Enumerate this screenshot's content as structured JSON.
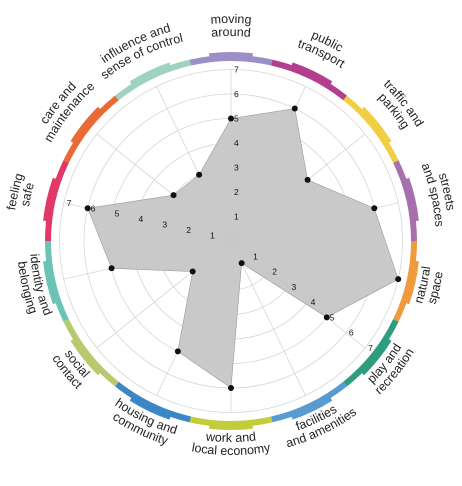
{
  "chart_data": {
    "type": "radar",
    "title": "",
    "scale": {
      "min": 0,
      "max": 7,
      "ticks": [
        1,
        2,
        3,
        4,
        5,
        6,
        7
      ]
    },
    "tick_axes": [
      "moving around",
      "feeling safe",
      "play and recreation"
    ],
    "categories": [
      {
        "name": "moving around",
        "lines": [
          "moving",
          "around"
        ],
        "value": 5,
        "color": "#9c8fc9"
      },
      {
        "name": "public transport",
        "lines": [
          "public",
          "transport"
        ],
        "value": 6,
        "color": "#b23f8e"
      },
      {
        "name": "traffic and parking",
        "lines": [
          "traffic and",
          "parking"
        ],
        "value": 4,
        "color": "#f0cf45"
      },
      {
        "name": "streets and spaces",
        "lines": [
          "streets",
          "and spaces"
        ],
        "value": 6,
        "color": "#a86fae"
      },
      {
        "name": "natural space",
        "lines": [
          "natural",
          "space"
        ],
        "value": 7,
        "color": "#ef9a3c"
      },
      {
        "name": "play and recreation",
        "lines": [
          "play and",
          "recreation"
        ],
        "value": 5,
        "color": "#2f9c7f"
      },
      {
        "name": "facilities and amenities",
        "lines": [
          "facilities",
          "and amenities"
        ],
        "value": 1,
        "color": "#5a9bcf"
      },
      {
        "name": "work and local economy",
        "lines": [
          "work and",
          "local economy"
        ],
        "value": 6,
        "color": "#c3cc3b"
      },
      {
        "name": "housing and community",
        "lines": [
          "housing and",
          "community"
        ],
        "value": 5,
        "color": "#3b86c4"
      },
      {
        "name": "social contact",
        "lines": [
          "social",
          "contact"
        ],
        "value": 2,
        "color": "#b9c96e"
      },
      {
        "name": "identity and belonging",
        "lines": [
          "identity and",
          "belonging"
        ],
        "value": 5,
        "color": "#6cc2b5"
      },
      {
        "name": "feeling safe",
        "lines": [
          "feeling",
          "safe"
        ],
        "value": 6,
        "color": "#e13868"
      },
      {
        "name": "care and maintenance",
        "lines": [
          "care and",
          "maintenance"
        ],
        "value": 3,
        "color": "#ea6a35"
      },
      {
        "name": "influence and sense of control",
        "lines": [
          "influence and",
          "sense of control"
        ],
        "value": 3,
        "color": "#9fd3bf"
      }
    ],
    "fill_color": "#c4c4c4",
    "grid": true,
    "legend": false
  }
}
